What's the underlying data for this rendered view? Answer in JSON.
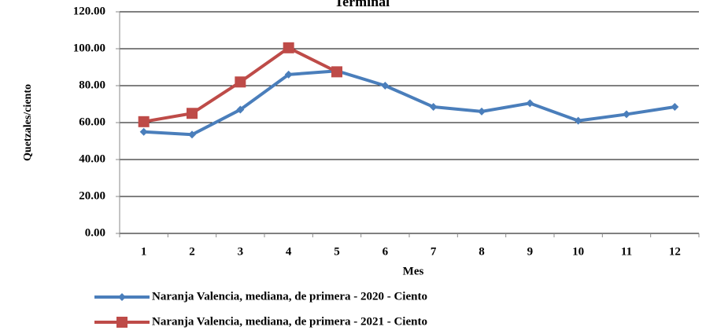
{
  "chart_data": {
    "type": "line",
    "title": "Terminal",
    "x_label": "Mes",
    "y_label": "Quetzales/ciento",
    "categories": [
      "1",
      "2",
      "3",
      "4",
      "5",
      "6",
      "7",
      "8",
      "9",
      "10",
      "11",
      "12"
    ],
    "series": [
      {
        "name": "Naranja Valencia, mediana, de primera - 2020 - Ciento",
        "color": "#4a7ebb",
        "marker": "diamond",
        "values": [
          55,
          53.5,
          67,
          86,
          88,
          80,
          68.5,
          66,
          70.5,
          61,
          64.5,
          68.5
        ]
      },
      {
        "name": "Naranja Valencia, mediana, de primera - 2021 - Ciento",
        "color": "#be4b48",
        "marker": "square",
        "values": [
          60.5,
          65,
          82,
          100.5,
          87.5,
          null,
          null,
          null,
          null,
          null,
          null,
          null
        ]
      }
    ],
    "ylim": [
      0,
      120
    ],
    "yticks": [
      {
        "value": 0,
        "label": "0.00"
      },
      {
        "value": 20,
        "label": "20.00"
      },
      {
        "value": 40,
        "label": "40.00"
      },
      {
        "value": 60,
        "label": "60.00"
      },
      {
        "value": 80,
        "label": "80.00"
      },
      {
        "value": 100,
        "label": "100.00"
      },
      {
        "value": 120,
        "label": "120.00"
      }
    ],
    "grid": true
  }
}
